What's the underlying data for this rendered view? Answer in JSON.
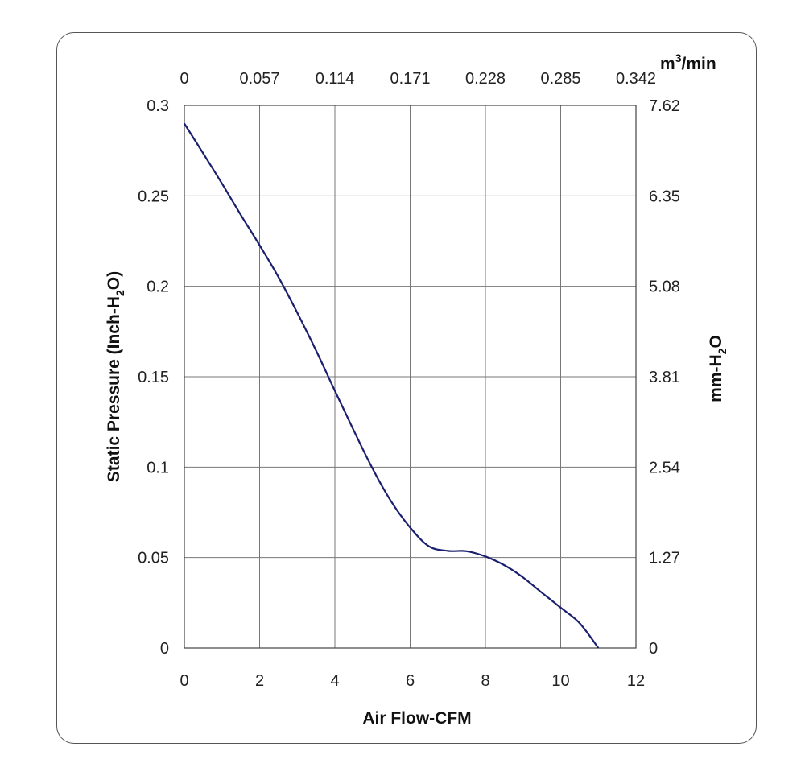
{
  "chart_data": {
    "type": "line",
    "x": [
      0,
      0.5,
      1,
      1.5,
      2,
      2.5,
      3,
      3.5,
      4,
      4.5,
      5,
      5.5,
      6,
      6.5,
      7,
      7.5,
      8,
      8.5,
      9,
      9.5,
      10,
      10.5,
      11
    ],
    "series": [
      {
        "values": [
          0.29,
          0.2735,
          0.2568,
          0.2395,
          0.2227,
          0.2051,
          0.1854,
          0.1645,
          0.1422,
          0.1203,
          0.0992,
          0.0809,
          0.0666,
          0.0562,
          0.0537,
          0.0535,
          0.0506,
          0.0458,
          0.039,
          0.0306,
          0.0223,
          0.0138,
          0.0
        ],
        "color": "#1a1f6e"
      }
    ],
    "xlabel": "Air Flow-CFM",
    "ylabel_left": "Static Pressure (Inch-H",
    "ylabel_left_sub": "2",
    "ylabel_left_end": "O)",
    "ylabel_right": "mm-H",
    "ylabel_right_sub": "2",
    "ylabel_right_end": "O",
    "top_unit": "m",
    "top_unit_sup": "3",
    "top_unit_end": "/min",
    "xlim": [
      0,
      12
    ],
    "ylim": [
      0,
      0.3
    ],
    "x_ticks": [
      "0",
      "2",
      "4",
      "6",
      "8",
      "10",
      "12"
    ],
    "y_ticks_left": [
      "0",
      "0.05",
      "0.1",
      "0.15",
      "0.2",
      "0.25",
      "0.3"
    ],
    "y_ticks_right": [
      "0",
      "1.27",
      "2.54",
      "3.81",
      "5.08",
      "6.35",
      "7.62"
    ],
    "x_ticks_top": [
      "0",
      "0.057",
      "0.114",
      "0.171",
      "0.228",
      "0.285",
      "0.342"
    ],
    "grid": true
  }
}
